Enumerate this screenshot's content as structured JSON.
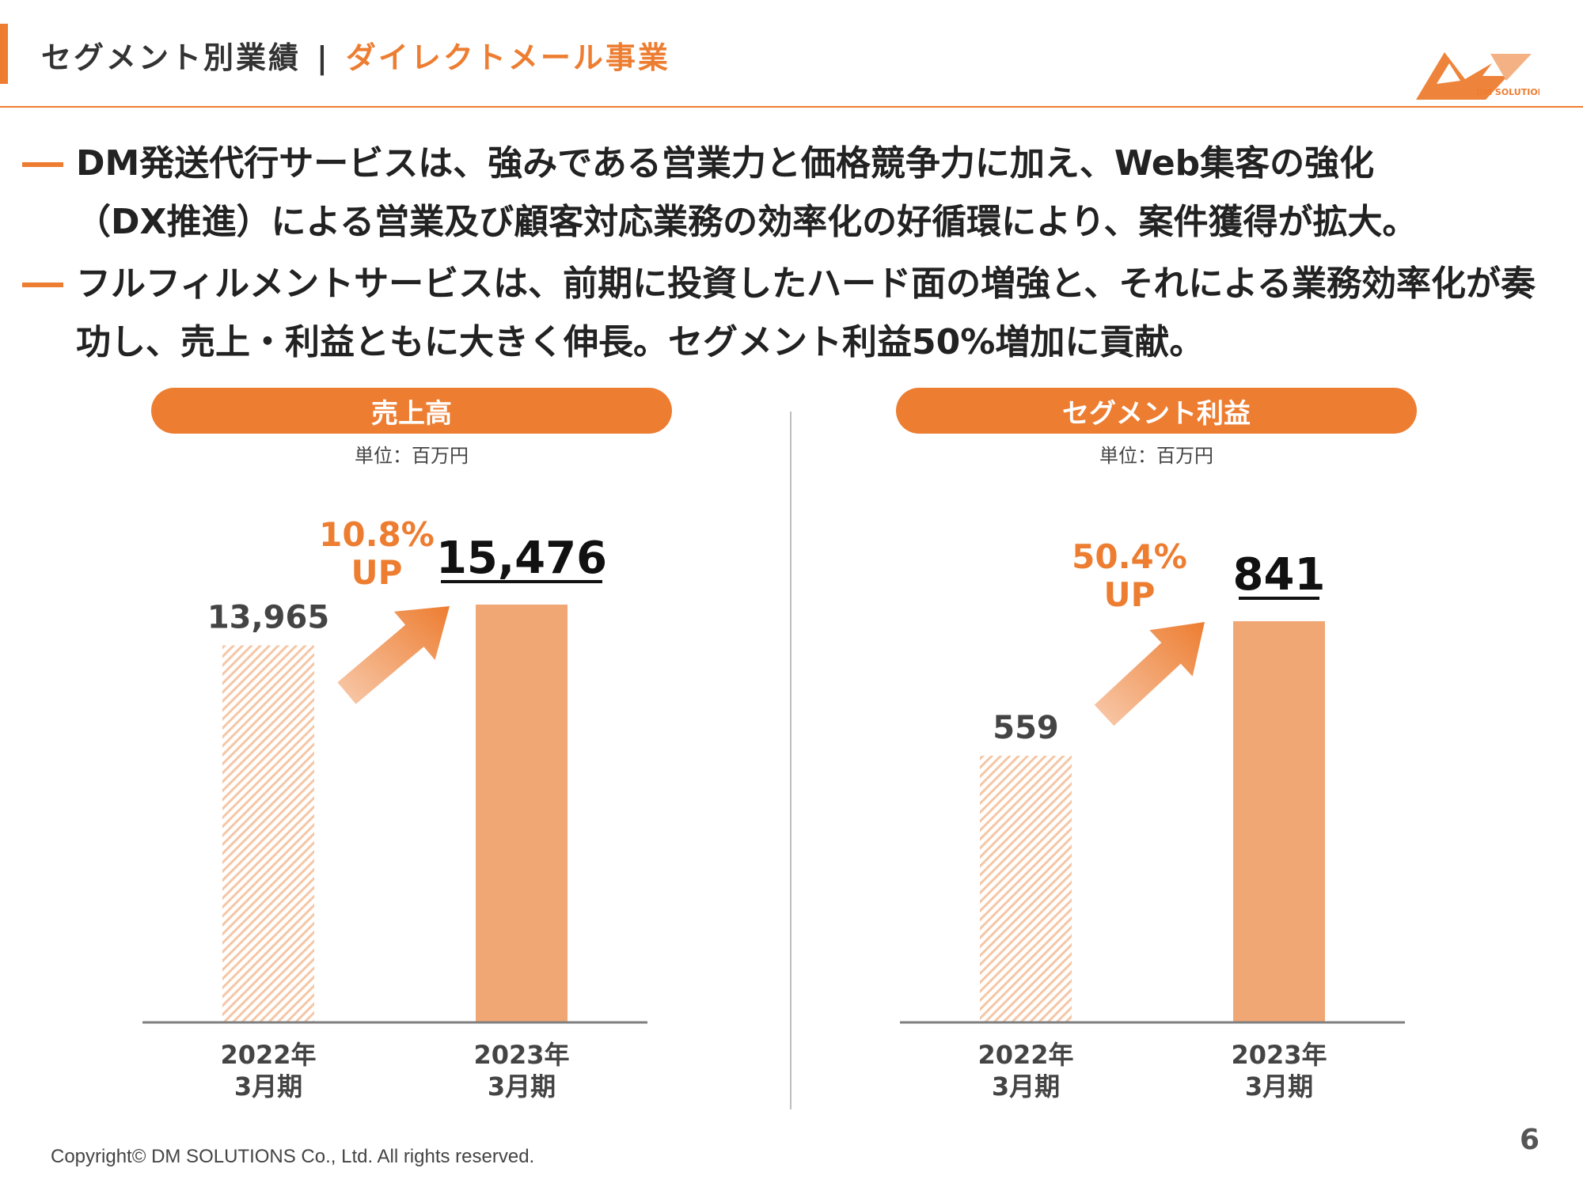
{
  "header": {
    "main": "セグメント別業績",
    "separator": "|",
    "sub": "ダイレクトメール事業"
  },
  "logo": {
    "text": "DM SOLUTIONS"
  },
  "bullets": [
    {
      "lines": [
        "DM発送代行サービスは、強みである営業力と価格競争力に加え、Web集客の強化",
        "（DX推進）による営業及び顧客対応業務の効率化の好循環により、案件獲得が拡大。"
      ]
    },
    {
      "lines": [
        "フルフィルメントサービスは、前期に投資したハード面の増強と、それによる業務効率化が奏",
        "功し、売上・利益ともに大きく伸長。セグメント利益50%増加に貢献。"
      ]
    }
  ],
  "colors": {
    "accent": "#ED7D31",
    "bar_current": "#F1A774",
    "bar_previous_hatch": "#F5C6A5",
    "axis": "#7F7F7F"
  },
  "chart_data": [
    {
      "type": "bar",
      "title": "売上高",
      "unit_label": "単位：百万円",
      "categories": [
        {
          "year": "2022年",
          "period": "3月期"
        },
        {
          "year": "2023年",
          "period": "3月期"
        }
      ],
      "values": [
        13965,
        15476
      ],
      "value_labels": [
        "13,965",
        "15,476"
      ],
      "growth": {
        "percent": "10.8%",
        "label": "UP"
      },
      "ylim": [
        0,
        15476
      ]
    },
    {
      "type": "bar",
      "title": "セグメント利益",
      "unit_label": "単位：百万円",
      "categories": [
        {
          "year": "2022年",
          "period": "3月期"
        },
        {
          "year": "2023年",
          "period": "3月期"
        }
      ],
      "values": [
        559,
        841
      ],
      "value_labels": [
        "559",
        "841"
      ],
      "growth": {
        "percent": "50.4%",
        "label": "UP"
      },
      "ylim": [
        0,
        841
      ]
    }
  ],
  "footer": {
    "copyright": "Copyright© DM SOLUTIONS Co., Ltd. All rights reserved.",
    "page": "6"
  }
}
